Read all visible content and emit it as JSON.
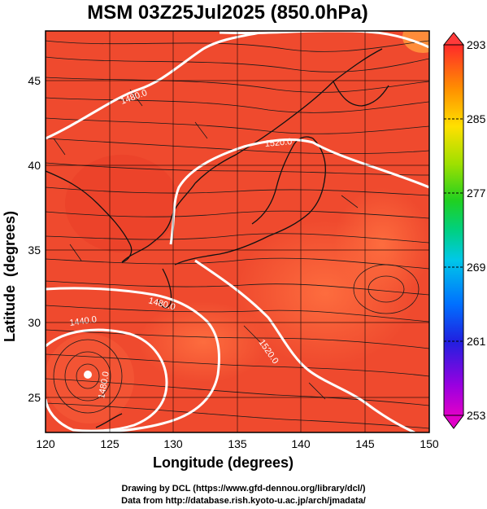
{
  "title": "MSM 03Z25Jul2025 (850.0hPa)",
  "x_axis_label": "Longitude (degrees)",
  "y_axis_label": "Latitude  (degrees)",
  "x_ticks": [
    "120",
    "125",
    "130",
    "135",
    "140",
    "145",
    "150"
  ],
  "y_ticks": [
    "25",
    "30",
    "35",
    "40",
    "45"
  ],
  "colorbar_ticks": [
    "293",
    "285",
    "277",
    "269",
    "261",
    "253"
  ],
  "contour_labels": [
    "1480.0",
    "1520.0",
    "1480.0",
    "1440.0",
    "1520.0",
    "1480.0"
  ],
  "credits": {
    "line1": "Drawing by DCL (https://www.gfd-dennou.org/library/dcl/)",
    "line2": "Data from http://database.rish.kyoto-u.ac.jp/arch/jmadata/"
  },
  "colors": {
    "field_main": "#f04a2e",
    "field_warm": "#ff6a3a",
    "contour": "#ffffff",
    "streamline": "#1a1a1a"
  },
  "chart_data": {
    "type": "heatmap",
    "xlim": [
      120,
      150
    ],
    "ylim": [
      22.5,
      48
    ],
    "colorbar_range": [
      253,
      293
    ],
    "variable_level": "850.0hPa"
  }
}
